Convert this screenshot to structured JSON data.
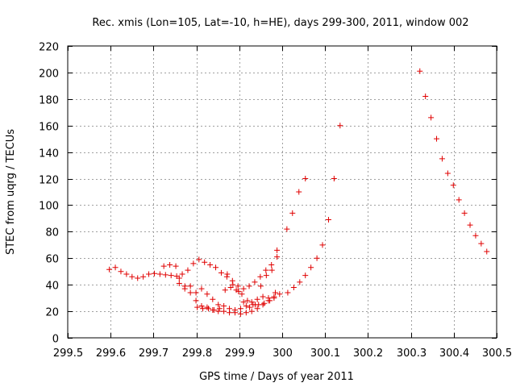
{
  "chart_data": {
    "type": "scatter",
    "title": "Rec. xmis (Lon=105, Lat=-10, h=HE), days 299-300, 2011, window 002",
    "xlabel": "GPS time / Days of year 2011",
    "ylabel": "STEC from uqrg / TECUs",
    "xlim": [
      299.5,
      300.5
    ],
    "ylim": [
      0,
      220
    ],
    "xticks": [
      "299.5",
      "299.6",
      "299.7",
      "299.8",
      "299.9",
      "300",
      "300.1",
      "300.2",
      "300.3",
      "300.4",
      "300.5"
    ],
    "xtick_values": [
      299.5,
      299.6,
      299.7,
      299.8,
      299.9,
      300.0,
      300.1,
      300.2,
      300.3,
      300.4,
      300.5
    ],
    "yticks": [
      "0",
      "20",
      "40",
      "60",
      "80",
      "100",
      "120",
      "140",
      "160",
      "180",
      "200",
      "220"
    ],
    "ytick_values": [
      0,
      20,
      40,
      60,
      80,
      100,
      120,
      140,
      160,
      180,
      200,
      220
    ],
    "grid": true,
    "marker": "plus",
    "color": "#e00000",
    "points": [
      [
        299.597,
        51.5
      ],
      [
        299.611,
        53.0
      ],
      [
        299.624,
        50.0
      ],
      [
        299.637,
        48.0
      ],
      [
        299.65,
        46.0
      ],
      [
        299.663,
        45.0
      ],
      [
        299.676,
        46.0
      ],
      [
        299.689,
        48.0
      ],
      [
        299.702,
        48.5
      ],
      [
        299.715,
        48.0
      ],
      [
        299.728,
        47.5
      ],
      [
        299.741,
        47.0
      ],
      [
        299.754,
        46.5
      ],
      [
        299.767,
        48.0
      ],
      [
        299.78,
        51.0
      ],
      [
        299.793,
        56.0
      ],
      [
        299.806,
        59.0
      ],
      [
        299.819,
        57.0
      ],
      [
        299.832,
        55.0
      ],
      [
        299.845,
        53.0
      ],
      [
        299.858,
        49.0
      ],
      [
        299.871,
        46.0
      ],
      [
        299.884,
        43.0
      ],
      [
        299.897,
        39.0
      ],
      [
        299.91,
        37.0
      ],
      [
        299.923,
        39.0
      ],
      [
        299.936,
        42.0
      ],
      [
        299.949,
        46.0
      ],
      [
        299.962,
        51.0
      ],
      [
        299.975,
        55.0
      ],
      [
        299.988,
        61.0
      ],
      [
        299.724,
        54.0
      ],
      [
        299.738,
        55.0
      ],
      [
        299.752,
        54.0
      ],
      [
        299.76,
        41.0
      ],
      [
        299.773,
        37.0
      ],
      [
        299.786,
        39.0
      ],
      [
        299.799,
        34.0
      ],
      [
        299.812,
        37.0
      ],
      [
        299.825,
        33.0
      ],
      [
        299.838,
        29.0
      ],
      [
        299.851,
        25.0
      ],
      [
        299.864,
        24.0
      ],
      [
        299.877,
        22.0
      ],
      [
        299.89,
        21.0
      ],
      [
        299.903,
        22.0
      ],
      [
        299.916,
        24.0
      ],
      [
        299.929,
        27.0
      ],
      [
        299.942,
        29.0
      ],
      [
        299.955,
        31.0
      ],
      [
        299.968,
        30.0
      ],
      [
        299.981,
        31.0
      ],
      [
        299.76,
        45.0
      ],
      [
        299.773,
        39.0
      ],
      [
        299.786,
        34.0
      ],
      [
        299.799,
        28.0
      ],
      [
        299.812,
        24.0
      ],
      [
        299.825,
        23.0
      ],
      [
        299.838,
        21.0
      ],
      [
        299.851,
        20.0
      ],
      [
        299.864,
        20.0
      ],
      [
        299.877,
        19.0
      ],
      [
        299.89,
        19.0
      ],
      [
        299.903,
        18.0
      ],
      [
        299.916,
        19.0
      ],
      [
        299.929,
        20.0
      ],
      [
        299.942,
        22.0
      ],
      [
        299.955,
        25.0
      ],
      [
        299.968,
        28.0
      ],
      [
        299.981,
        30.0
      ],
      [
        299.802,
        23.0
      ],
      [
        299.815,
        22.0
      ],
      [
        299.828,
        22.0
      ],
      [
        299.841,
        21.0
      ],
      [
        299.854,
        22.0
      ],
      [
        299.867,
        36.0
      ],
      [
        299.88,
        38.0
      ],
      [
        299.893,
        36.0
      ],
      [
        299.906,
        33.0
      ],
      [
        299.919,
        28.0
      ],
      [
        299.932,
        25.0
      ],
      [
        299.945,
        25.0
      ],
      [
        299.958,
        26.0
      ],
      [
        299.971,
        28.0
      ],
      [
        299.984,
        34.0
      ],
      [
        299.994,
        33.0
      ],
      [
        299.872,
        48.0
      ],
      [
        299.885,
        40.0
      ],
      [
        299.898,
        35.0
      ],
      [
        299.91,
        27.0
      ],
      [
        299.924,
        23.0
      ],
      [
        299.937,
        25.0
      ],
      [
        299.95,
        39.0
      ],
      [
        299.963,
        47.0
      ],
      [
        299.976,
        51.0
      ],
      [
        300.013,
        34.0
      ],
      [
        300.027,
        38.0
      ],
      [
        300.041,
        42.0
      ],
      [
        300.054,
        47.0
      ],
      [
        300.067,
        53.0
      ],
      [
        300.081,
        60.0
      ],
      [
        300.094,
        70.0
      ],
      [
        300.108,
        89.0
      ],
      [
        300.121,
        120.0
      ],
      [
        300.135,
        160.0
      ],
      [
        299.988,
        66.0
      ],
      [
        300.011,
        82.0
      ],
      [
        300.024,
        94.0
      ],
      [
        300.039,
        110.0
      ],
      [
        300.054,
        120.0
      ],
      [
        300.321,
        201.0
      ],
      [
        300.334,
        182.0
      ],
      [
        300.347,
        166.0
      ],
      [
        300.36,
        150.0
      ],
      [
        300.373,
        135.0
      ],
      [
        300.386,
        124.0
      ],
      [
        300.399,
        115.0
      ],
      [
        300.412,
        104.0
      ],
      [
        300.425,
        94.0
      ],
      [
        300.438,
        85.0
      ],
      [
        300.451,
        77.0
      ],
      [
        300.464,
        71.0
      ],
      [
        300.477,
        65.0
      ]
    ]
  }
}
